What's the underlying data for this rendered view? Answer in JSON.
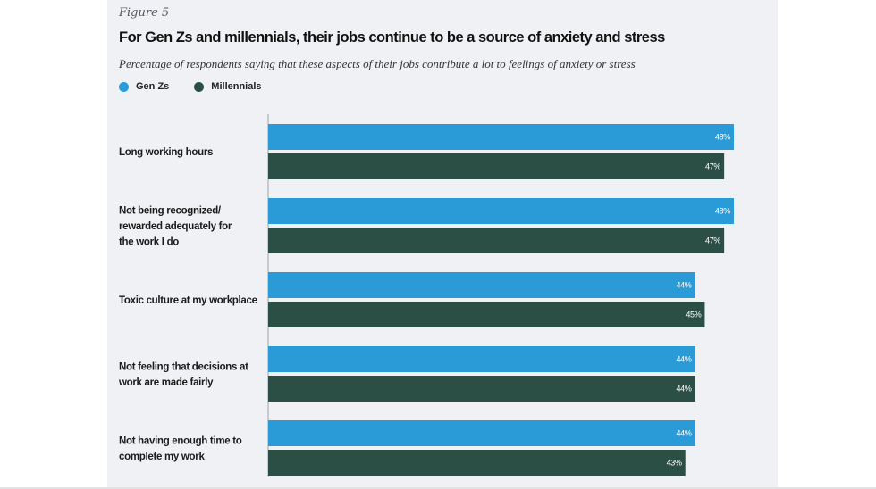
{
  "figure_label": "Figure 5",
  "colors": {
    "gen_z": "#2a9bd6",
    "millennials": "#2b4f45",
    "panel": "#f0f1f4"
  },
  "chart_data": {
    "type": "bar",
    "orientation": "horizontal",
    "title": "For Gen Zs and millennials, their jobs continue to be a source of anxiety and stress",
    "subtitle": "Percentage of respondents saying that these aspects of their jobs contribute a lot to feelings of anxiety or stress",
    "legend_position": "top-left",
    "xlim": [
      0,
      48
    ],
    "categories": [
      [
        "Long working hours"
      ],
      [
        "Not being recognized/",
        "rewarded adequately for",
        "the work I do"
      ],
      [
        "Toxic culture at my workplace"
      ],
      [
        "Not feeling that decisions at",
        "work are made fairly"
      ],
      [
        "Not having enough time to",
        "complete my work"
      ]
    ],
    "series": [
      {
        "name": "Gen Zs",
        "color": "#2a9bd6",
        "values": [
          48,
          48,
          44,
          44,
          44
        ]
      },
      {
        "name": "Millennials",
        "color": "#2b4f45",
        "values": [
          47,
          47,
          45,
          44,
          43
        ]
      }
    ],
    "value_suffix": "%"
  }
}
